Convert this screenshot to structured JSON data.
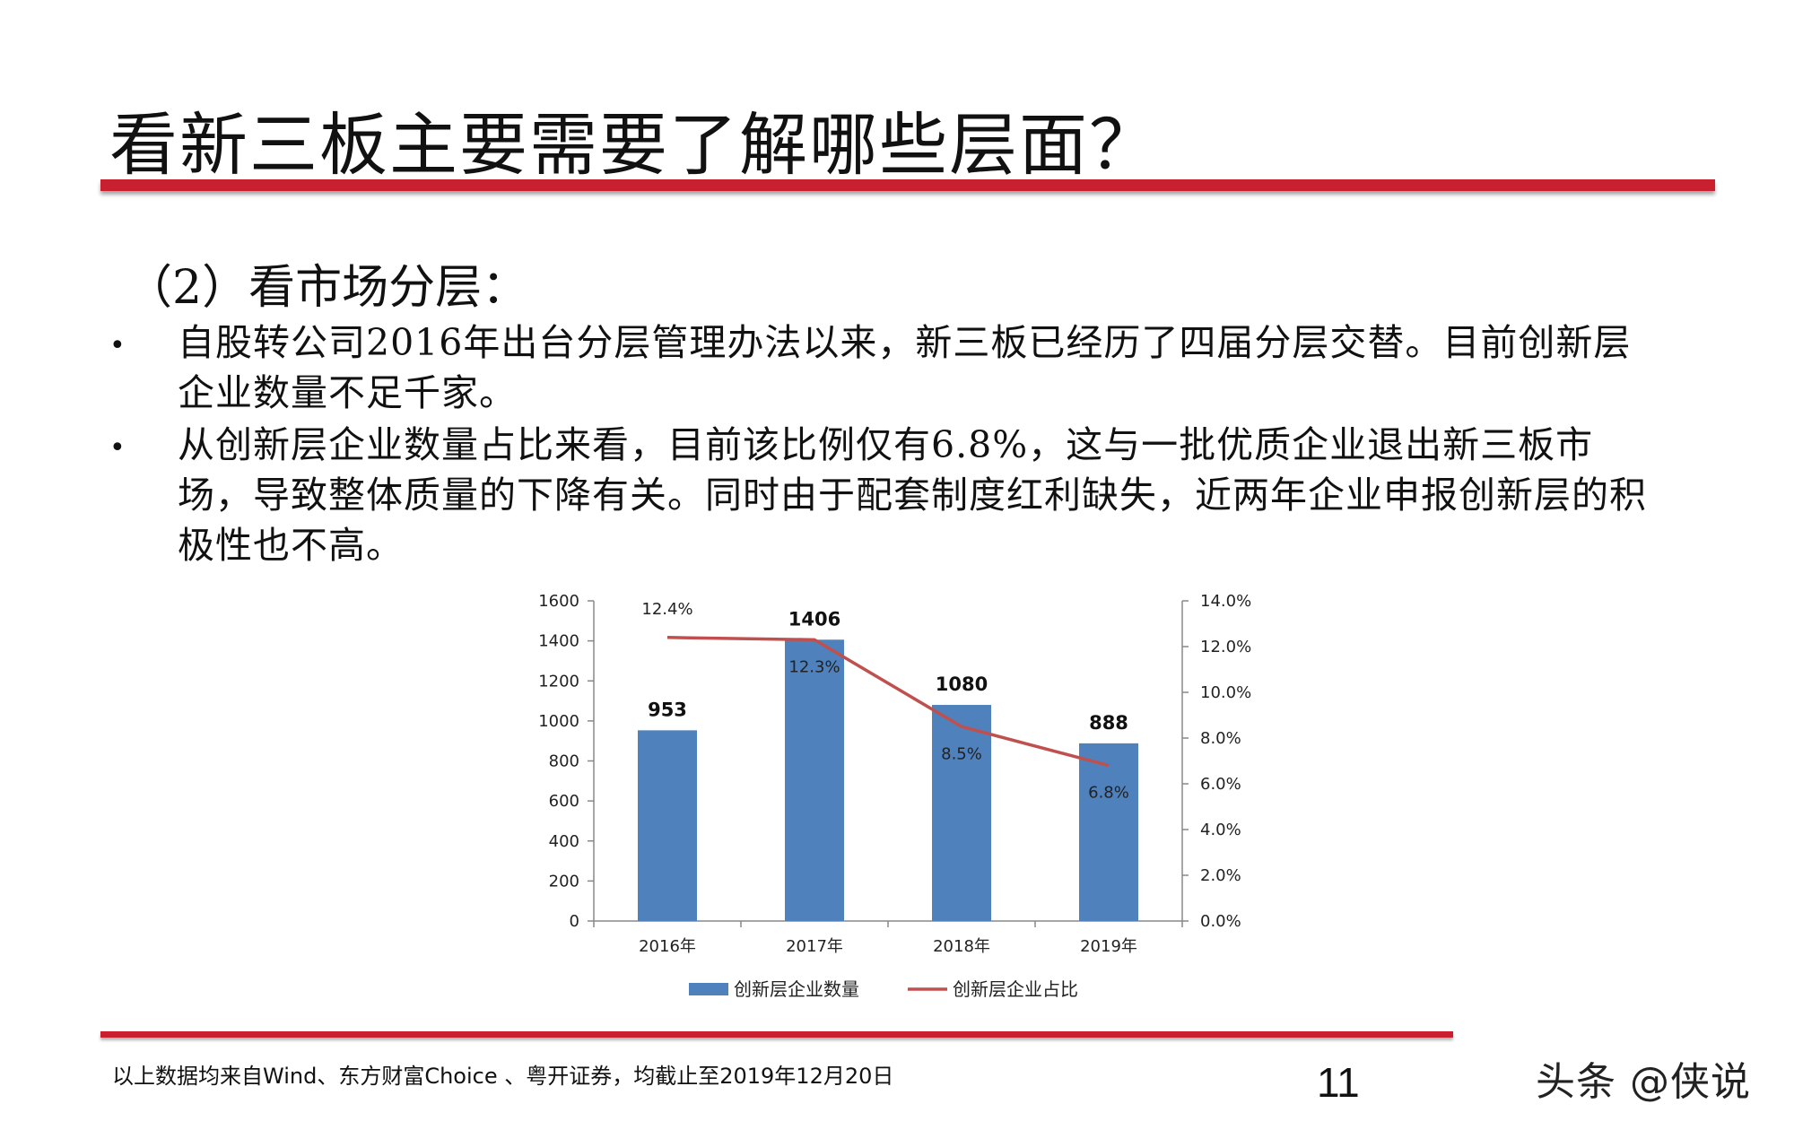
{
  "title": "看新三板主要需要了解哪些层面？",
  "subtitle": "（2）看市场分层：",
  "bullets": [
    {
      "marker": "•",
      "text": "自股转公司2016年出台分层管理办法以来，新三板已经历了四届分层交替。目前创新层企业数量不足千家。"
    },
    {
      "marker": "•",
      "text": "从创新层企业数量占比来看，目前该比例仅有6.8%，这与一批优质企业退出新三板市场，导致整体质量的下降有关。同时由于配套制度红利缺失，近两年企业申报创新层的积极性也不高。"
    }
  ],
  "footnote": "以上数据均来自Wind、东方财富Choice 、粤开证券，均截止至2019年12月20日",
  "page_number": "11",
  "watermark": "头条 @侠说",
  "colors": {
    "accent_red": "#c8202f",
    "bar_blue": "#4f81bd",
    "line_red": "#c0504d"
  },
  "chart_data": {
    "type": "bar",
    "categories": [
      "2016年",
      "2017年",
      "2018年",
      "2019年"
    ],
    "series": [
      {
        "name": "创新层企业数量",
        "type": "bar",
        "axis": "left",
        "values": [
          953,
          1406,
          1080,
          888
        ],
        "labels": [
          "953",
          "1406",
          "1080",
          "888"
        ]
      },
      {
        "name": "创新层企业占比",
        "type": "line",
        "axis": "right",
        "values": [
          12.4,
          12.3,
          8.5,
          6.8
        ],
        "labels": [
          "12.4%",
          "12.3%",
          "8.5%",
          "6.8%"
        ]
      }
    ],
    "ylim": [
      0,
      1600
    ],
    "yticks": [
      "0",
      "200",
      "400",
      "600",
      "800",
      "1000",
      "1200",
      "1400",
      "1600"
    ],
    "y2lim": [
      0,
      14
    ],
    "y2ticks": [
      "0.0%",
      "2.0%",
      "4.0%",
      "6.0%",
      "8.0%",
      "10.0%",
      "12.0%",
      "14.0%"
    ],
    "legend": "bottom",
    "grid": false
  }
}
